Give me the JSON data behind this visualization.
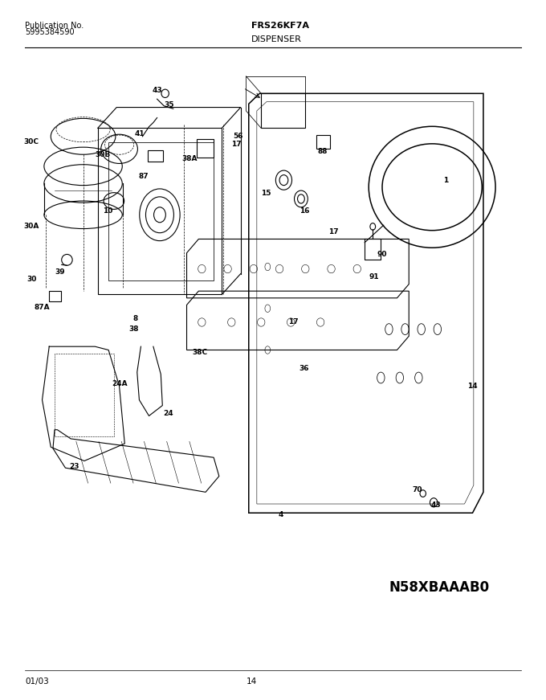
{
  "pub_label": "Publication No.",
  "pub_number": "5995384590",
  "model": "FRS26KF7A",
  "section": "DISPENSER",
  "diagram_code": "N58XBAAAB0",
  "date": "01/03",
  "page": "14",
  "bg_color": "#ffffff",
  "text_color": "#000000",
  "fig_width": 6.8,
  "fig_height": 8.71,
  "dpi": 100
}
